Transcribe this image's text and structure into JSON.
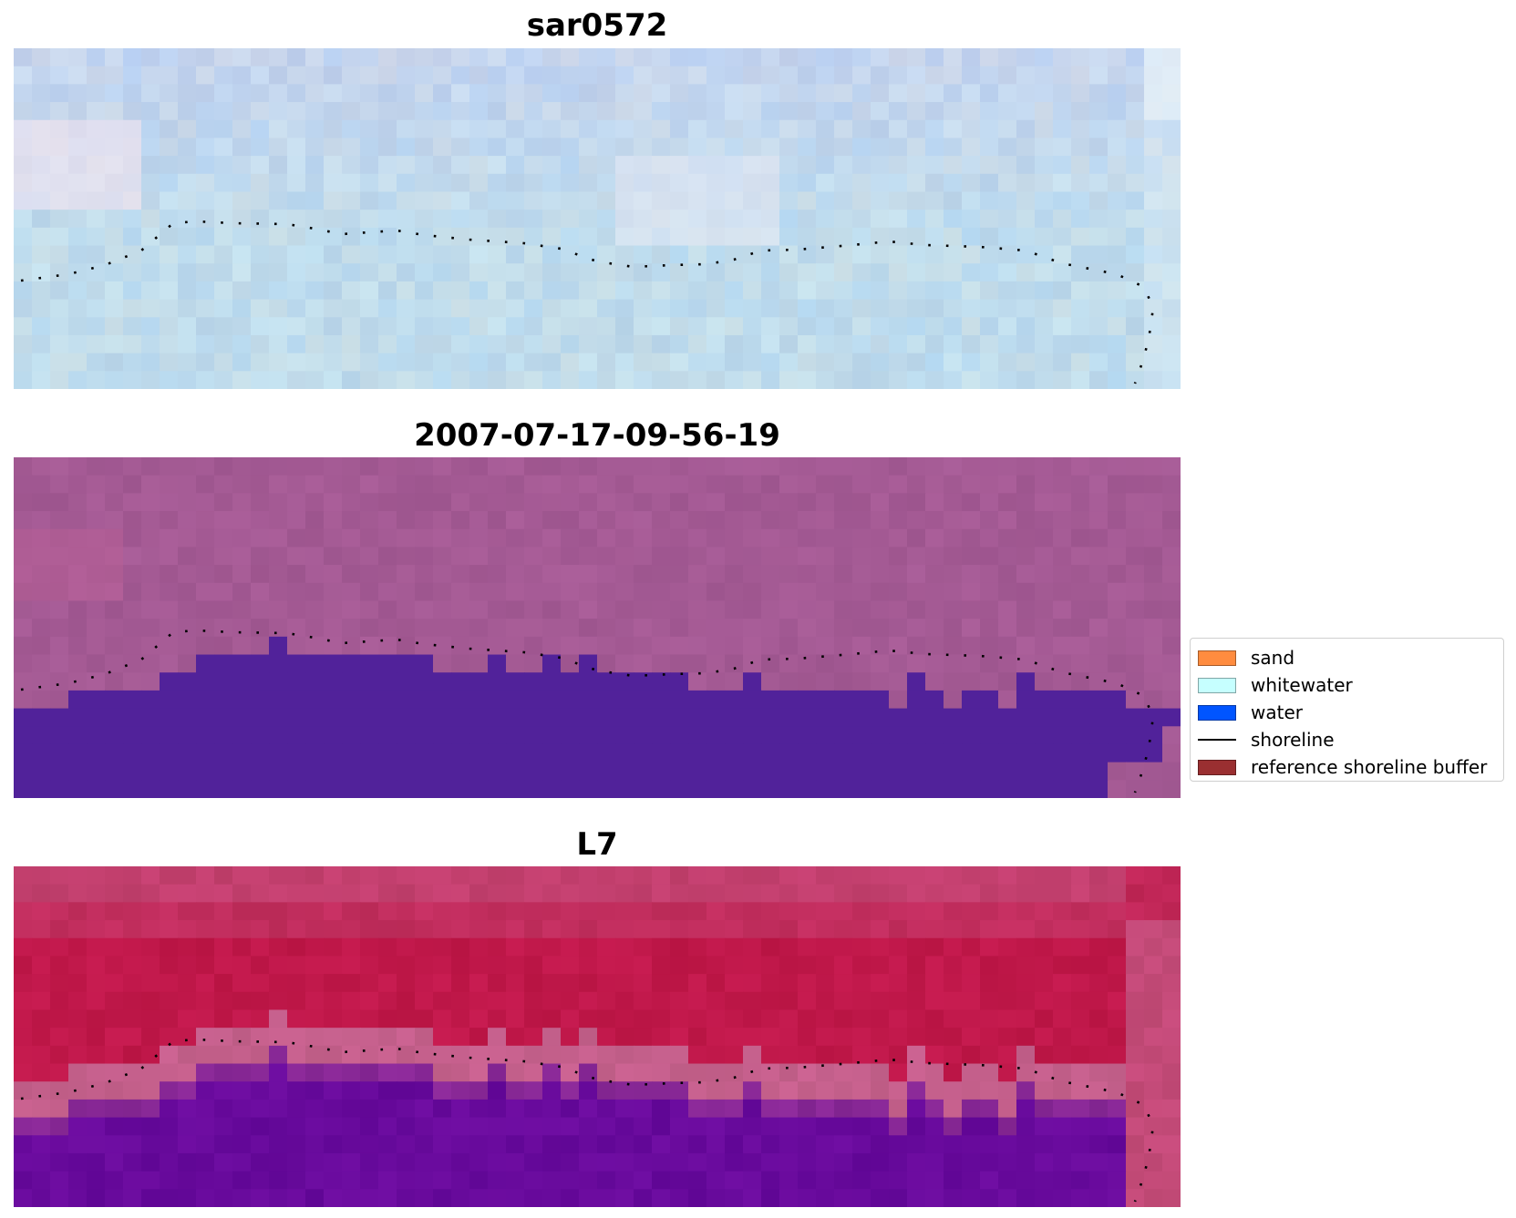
{
  "panels": [
    {
      "title": "sar0572"
    },
    {
      "title": "2007-07-17-09-56-19"
    },
    {
      "title": "L7"
    }
  ],
  "legend": {
    "items": [
      {
        "label": "sand",
        "color": "#ff8c3f",
        "kind": "patch",
        "icon": "sand-swatch-icon"
      },
      {
        "label": "whitewater",
        "color": "#c6ffff",
        "kind": "patch",
        "icon": "whitewater-swatch-icon"
      },
      {
        "label": "water",
        "color": "#0055ff",
        "kind": "patch",
        "icon": "water-swatch-icon"
      },
      {
        "label": "shoreline",
        "color": "#000000",
        "kind": "line",
        "icon": "shoreline-line-icon"
      },
      {
        "label": "reference shoreline buffer",
        "color": "#9a2f31",
        "kind": "patch",
        "icon": "buffer-swatch-icon"
      }
    ]
  },
  "colors": {
    "rgb_base": "#c0dcec",
    "rgb_sky": "#c4d4ee",
    "class_background": "#a45a94",
    "class_water": "#51229a",
    "mndwi_land": "#c0184a",
    "mndwi_water": "#680a9c",
    "mndwi_edge": "#c5608c",
    "shoreline": "#000000"
  }
}
